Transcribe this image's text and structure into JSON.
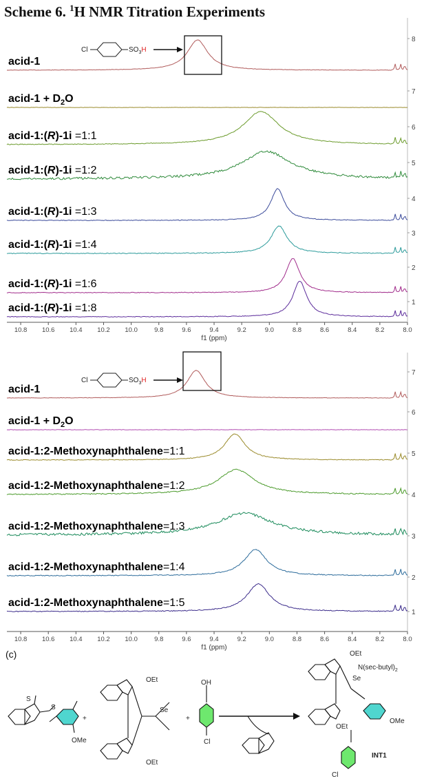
{
  "title": {
    "prefix": "Scheme 6. ",
    "sup": "1",
    "rest": "H NMR Titration Experiments"
  },
  "panel_c": "(c)",
  "chem": {
    "cl": "Cl",
    "so3": "SO",
    "sub3": "3",
    "h": "H",
    "int1": "INT1",
    "oet": "OEt",
    "ome": "OMe",
    "n_sec": "N(sec-butyl)",
    "sub2": "2",
    "se": "Se",
    "plus": "+"
  },
  "chart_data": [
    {
      "type": "line",
      "xlabel": "f1 (ppm)",
      "xlim": [
        10.9,
        8.0
      ],
      "xticks": [
        "10.8",
        "10.6",
        "10.4",
        "10.2",
        "10.0",
        "9.8",
        "9.6",
        "9.4",
        "9.2",
        "9.0",
        "8.8",
        "8.6",
        "8.4",
        "8.2",
        "8.0"
      ],
      "trace_numbers": [
        "8",
        "7",
        "6",
        "5",
        "4",
        "3",
        "2",
        "1"
      ],
      "series": [
        {
          "name": "acid-1",
          "peak_ppm": 9.52,
          "color": "#b05a5a"
        },
        {
          "name": "acid-1 + D2O",
          "peak_ppm": null,
          "color": "#9a8a2a"
        },
        {
          "name": "acid-1:(R)-1i =1:1",
          "peak_ppm": 9.06,
          "color": "#6a9a2a"
        },
        {
          "name": "acid-1:(R)-1i =1:2",
          "peak_ppm": 9.02,
          "color": "#2e8a3a"
        },
        {
          "name": "acid-1:(R)-1i =1:3",
          "peak_ppm": 8.94,
          "color": "#3a4a9a"
        },
        {
          "name": "acid-1:(R)-1i =1:4",
          "peak_ppm": 8.93,
          "color": "#2a9a9a"
        },
        {
          "name": "acid-1:(R)-1i =1:6",
          "peak_ppm": 8.83,
          "color": "#a02a8a"
        },
        {
          "name": "acid-1:(R)-1i =1:8",
          "peak_ppm": 8.78,
          "color": "#5a2a9a"
        }
      ]
    },
    {
      "type": "line",
      "xlabel": "f1 (ppm)",
      "xlim": [
        10.9,
        8.0
      ],
      "xticks": [
        "10.8",
        "10.6",
        "10.4",
        "10.2",
        "10.0",
        "9.8",
        "9.6",
        "9.4",
        "9.2",
        "9.0",
        "8.8",
        "8.6",
        "8.4",
        "8.2",
        "8.0"
      ],
      "trace_numbers": [
        "7",
        "6",
        "5",
        "4",
        "3",
        "2",
        "1"
      ],
      "series": [
        {
          "name": "acid-1",
          "peak_ppm": 9.53,
          "color": "#b05a5a"
        },
        {
          "name": "acid-1 + D2O",
          "peak_ppm": null,
          "color": "#b04ab0"
        },
        {
          "name": "acid-1:2-Methoxynaphthalene=1:1",
          "peak_ppm": 9.25,
          "color": "#9a8a2a"
        },
        {
          "name": "acid-1:2-Methoxynaphthalene=1:2",
          "peak_ppm": 9.24,
          "color": "#4a9a2a"
        },
        {
          "name": "acid-1:2-Methoxynaphthalene=1:3",
          "peak_ppm": 9.18,
          "color": "#1a8a5a"
        },
        {
          "name": "acid-1:2-Methoxynaphthalene=1:4",
          "peak_ppm": 9.1,
          "color": "#2a6a9a"
        },
        {
          "name": "acid-1:2-Methoxynaphthalene=1:5",
          "peak_ppm": 9.08,
          "color": "#3a2a8a"
        }
      ]
    }
  ]
}
